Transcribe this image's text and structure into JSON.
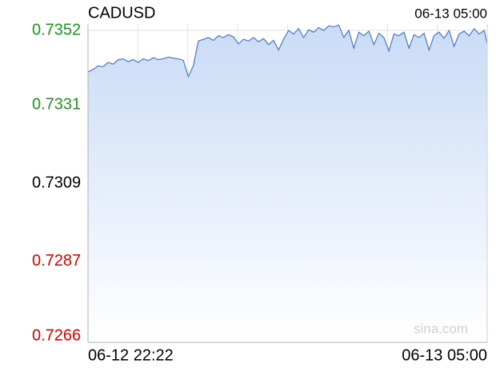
{
  "chart_data": {
    "type": "area",
    "title": "CADUSD",
    "timestamp": "06-13 05:00",
    "watermark": "sina.com",
    "x": [
      0,
      5,
      10,
      15,
      20,
      25,
      30,
      35,
      40,
      45,
      50,
      55,
      60,
      65,
      70,
      75,
      80,
      85,
      90,
      95,
      100,
      105,
      110,
      115,
      120,
      125,
      130,
      135,
      140,
      145,
      150,
      155,
      160,
      165,
      170,
      175,
      180,
      185,
      190,
      195,
      200,
      205,
      210,
      215,
      220,
      225,
      230,
      235,
      240,
      245,
      250,
      255,
      260,
      265,
      270,
      275,
      280,
      285,
      290,
      295,
      300,
      305,
      310,
      315,
      320,
      325,
      330,
      335,
      340,
      345,
      350,
      355,
      360,
      365,
      370,
      375,
      380,
      385,
      390,
      395,
      398
    ],
    "values": [
      0.73403,
      0.7341,
      0.7342,
      0.73418,
      0.7343,
      0.73425,
      0.73437,
      0.7344,
      0.73432,
      0.73438,
      0.7343,
      0.7344,
      0.73435,
      0.73443,
      0.73438,
      0.7344,
      0.73445,
      0.73442,
      0.7344,
      0.73436,
      0.7339,
      0.7342,
      0.7349,
      0.73495,
      0.735,
      0.73492,
      0.73505,
      0.735,
      0.73508,
      0.73502,
      0.73482,
      0.73495,
      0.7349,
      0.735,
      0.73488,
      0.73497,
      0.7348,
      0.73492,
      0.73465,
      0.73495,
      0.7352,
      0.7351,
      0.73525,
      0.735,
      0.73522,
      0.73515,
      0.73528,
      0.7352,
      0.73533,
      0.7353,
      0.73535,
      0.735,
      0.7352,
      0.7347,
      0.73515,
      0.73505,
      0.73518,
      0.7348,
      0.73512,
      0.735,
      0.73462,
      0.7351,
      0.73505,
      0.73515,
      0.7347,
      0.73508,
      0.735,
      0.73512,
      0.73465,
      0.73505,
      0.73515,
      0.73498,
      0.7352,
      0.73475,
      0.7351,
      0.73518,
      0.73505,
      0.73525,
      0.7351,
      0.7352,
      0.73482
    ],
    "xlim": [
      0,
      398
    ],
    "xticks": [
      {
        "value": 0,
        "label": "06-12 22:22"
      },
      {
        "value": 398,
        "label": "06-13 05:00"
      }
    ],
    "x_grid_divisions": 8,
    "ylim": [
      0.72642,
      0.73538
    ],
    "yticks": [
      0.7352,
      0.7331,
      0.7309,
      0.7287,
      0.7266
    ],
    "baseline": 0.7309,
    "color": "#4a78c8",
    "fill_color": "#c9dbf6",
    "up_color": "#1a9a1a",
    "down_color": "#e00000",
    "flat_color": "#000000",
    "grid": true
  }
}
